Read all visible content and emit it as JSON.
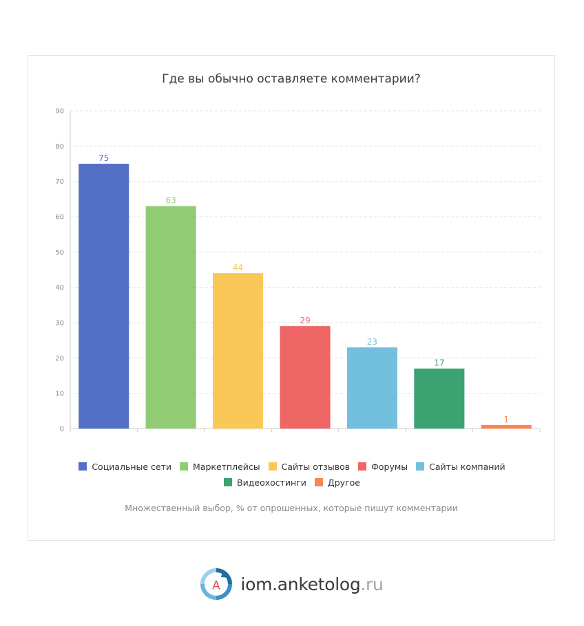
{
  "chart_data": {
    "type": "bar",
    "title": "Где вы обычно оставляете комментарии?",
    "categories": [
      "Социальные сети",
      "Маркетплейсы",
      "Сайты отзывов",
      "Форумы",
      "Сайты компаний",
      "Видеохостинги",
      "Другое"
    ],
    "values": [
      75,
      63,
      44,
      29,
      23,
      17,
      1
    ],
    "colors": [
      "#5470c6",
      "#91cc75",
      "#fac858",
      "#ee6666",
      "#73c0de",
      "#3ba272",
      "#fc8452"
    ],
    "ylim": [
      0,
      90
    ],
    "yticks": [
      0,
      10,
      20,
      30,
      40,
      50,
      60,
      70,
      80,
      90
    ],
    "grid": true,
    "legend_position": "bottom",
    "note": "Множественный выбор, % от опрошенных, которые пишут комментарии"
  },
  "logo": {
    "icon_name": "anketolog-logo-icon",
    "letter": "A",
    "name": "iom.anketolog",
    "tld": ".ru"
  }
}
